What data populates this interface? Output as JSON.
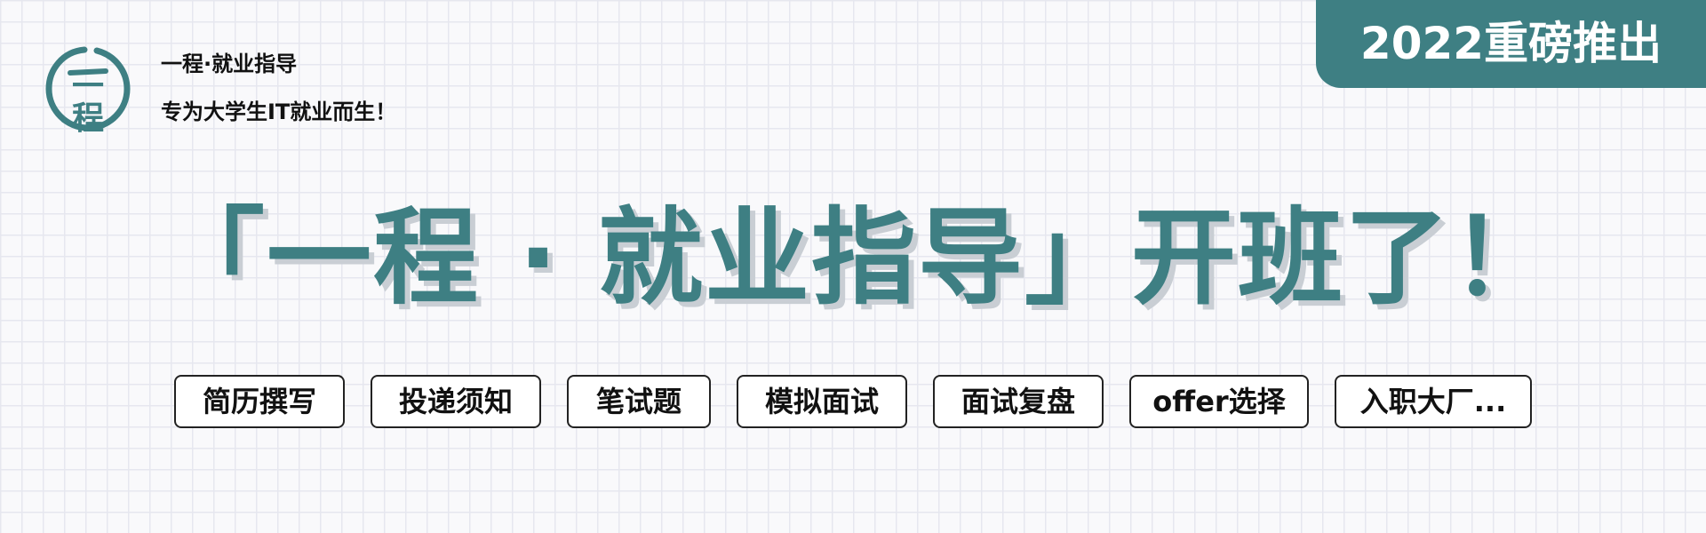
{
  "logo": {
    "character": "一\n程",
    "icon": "brush-circle-logo",
    "color": "#3e7f83"
  },
  "brand": {
    "name": "一程·就业指导",
    "tagline": "专为大学生IT就业而生！"
  },
  "badge": {
    "label": "2022重磅推出",
    "color": "#3e7f83"
  },
  "headline": {
    "text": "「一程 · 就业指导」开班了！",
    "color": "#3e7f83",
    "shadow_color": "#c9ced4"
  },
  "tags": [
    "简历撰写",
    "投递须知",
    "笔试题",
    "模拟面试",
    "面试复盘",
    "offer选择",
    "入职大厂..."
  ],
  "background": {
    "color": "#f9f9fb",
    "grid_color": "#e6e7ef"
  }
}
